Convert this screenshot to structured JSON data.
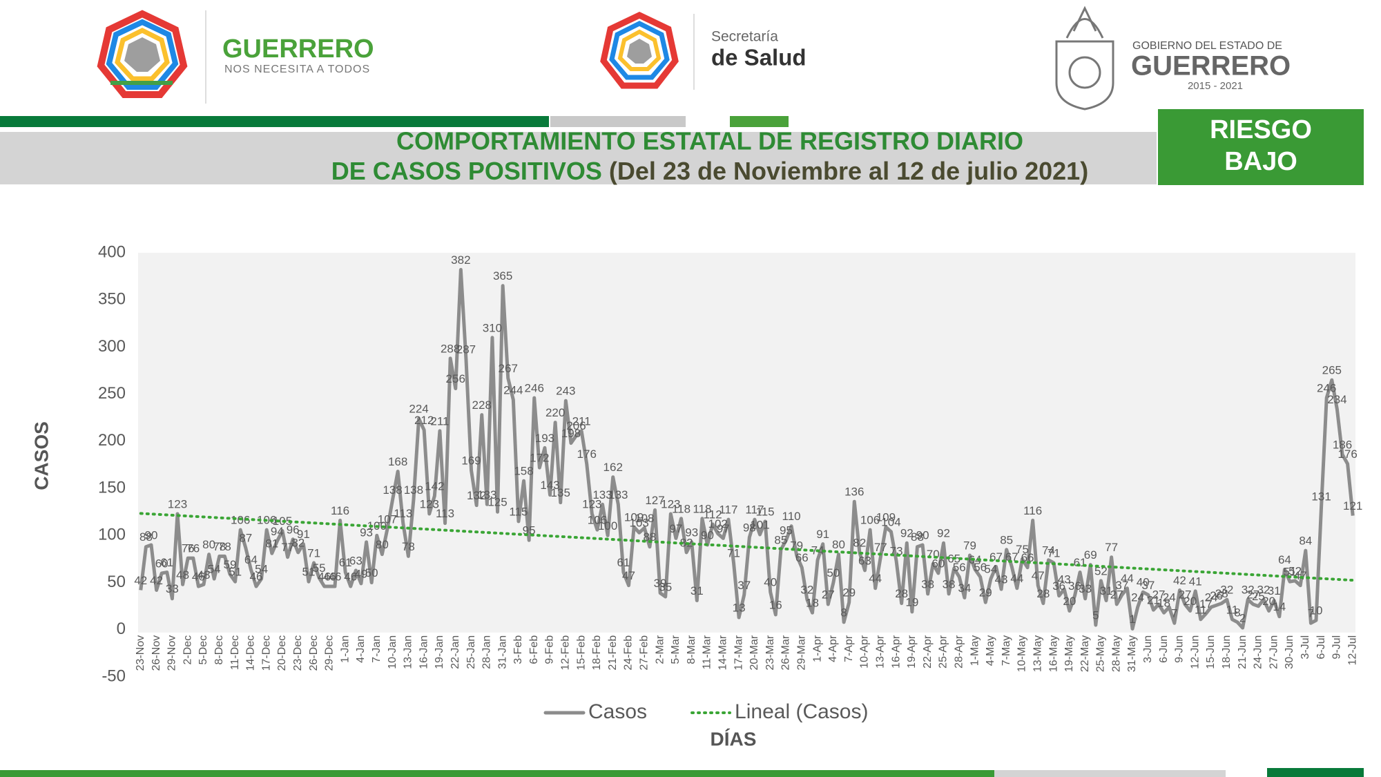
{
  "header": {
    "brand_left": {
      "title": "GUERRERO",
      "subtitle": "NOS NECESITA A TODOS"
    },
    "brand_center": {
      "line1": "Secretaría",
      "line2": "de Salud"
    },
    "brand_right": {
      "line1": "GOBIERNO DEL ESTADO DE",
      "line2": "GUERRERO",
      "years": "2015 - 2021"
    },
    "title_line1": "COMPORTAMIENTO ESTATAL DE REGISTRO DIARIO",
    "title_line2": "DE CASOS POSITIVOS",
    "title_period": "(Del 23 de Noviembre al 12 de julio 2021)",
    "risk_line1": "RIESGO",
    "risk_line2": "BAJO"
  },
  "chart_data": {
    "type": "line",
    "x_label": "DÍAS",
    "y_label": "CASOS",
    "ylim": [
      -50,
      400
    ],
    "yticks": [
      -50,
      0,
      50,
      100,
      150,
      200,
      250,
      300,
      350,
      400
    ],
    "grid": false,
    "legend": "bottom",
    "categories": [
      "23-Nov",
      null,
      null,
      "26-Nov",
      null,
      null,
      "29-Nov",
      null,
      null,
      "2-Dec",
      null,
      null,
      "5-Dec",
      null,
      null,
      "8-Dec",
      null,
      null,
      "11-Dec",
      null,
      null,
      "14-Dec",
      null,
      null,
      "17-Dec",
      null,
      null,
      "20-Dec",
      null,
      null,
      "23-Dec",
      null,
      null,
      "26-Dec",
      null,
      null,
      "29-Dec",
      null,
      null,
      "1-Jan",
      null,
      null,
      "4-Jan",
      null,
      null,
      "7-Jan",
      null,
      null,
      "10-Jan",
      null,
      null,
      "13-Jan",
      null,
      null,
      "16-Jan",
      null,
      null,
      "19-Jan",
      null,
      null,
      "22-Jan",
      null,
      null,
      "25-Jan",
      null,
      null,
      "28-Jan",
      null,
      null,
      "31-Jan",
      null,
      null,
      "3-Feb",
      null,
      null,
      "6-Feb",
      null,
      null,
      "9-Feb",
      null,
      null,
      "12-Feb",
      null,
      null,
      "15-Feb",
      null,
      null,
      "18-Feb",
      null,
      null,
      "21-Feb",
      null,
      null,
      "24-Feb",
      null,
      null,
      "27-Feb",
      null,
      null,
      "2-Mar",
      null,
      null,
      "5-Mar",
      null,
      null,
      "8-Mar",
      null,
      null,
      "11-Mar",
      null,
      null,
      "14-Mar",
      null,
      null,
      "17-Mar",
      null,
      null,
      "20-Mar",
      null,
      null,
      "23-Mar",
      null,
      null,
      "26-Mar",
      null,
      null,
      "29-Mar",
      null,
      null,
      "1-Apr",
      null,
      null,
      "4-Apr",
      null,
      null,
      "7-Apr",
      null,
      null,
      "10-Apr",
      null,
      null,
      "13-Apr",
      null,
      null,
      "16-Apr",
      null,
      null,
      "19-Apr",
      null,
      null,
      "22-Apr",
      null,
      null,
      "25-Apr",
      null,
      null,
      "28-Apr",
      null,
      null,
      "1-May",
      null,
      null,
      "4-May",
      null,
      null,
      "7-May",
      null,
      null,
      "10-May",
      null,
      null,
      "13-May",
      null,
      null,
      "16-May",
      null,
      null,
      "19-May",
      null,
      null,
      "22-May",
      null,
      null,
      "25-May",
      null,
      null,
      "28-May",
      null,
      null,
      "31-May",
      null,
      null,
      "3-Jun",
      null,
      null,
      "6-Jun",
      null,
      null,
      "9-Jun",
      null,
      null,
      "12-Jun",
      null,
      null,
      "15-Jun",
      null,
      null,
      "18-Jun",
      null,
      null,
      "21-Jun",
      null,
      null,
      "24-Jun",
      null,
      null,
      "27-Jun",
      null,
      null,
      "30-Jun",
      null,
      null,
      "3-Jul",
      null,
      null,
      "6-Jul",
      null,
      null,
      "9-Jul",
      null,
      null,
      "12-Jul"
    ],
    "series": [
      {
        "name": "Casos",
        "color": "#8c8c8c",
        "values": [
          42,
          88,
          90,
          42,
          60,
          61,
          33,
          123,
          48,
          76,
          76,
          46,
          48,
          80,
          54,
          78,
          78,
          59,
          51,
          106,
          87,
          64,
          46,
          54,
          106,
          81,
          94,
          105,
          77,
          96,
          82,
          91,
          51,
          71,
          55,
          46,
          46,
          46,
          116,
          61,
          46,
          63,
          49,
          93,
          50,
          100,
          80,
          107,
          138,
          168,
          113,
          78,
          138,
          224,
          212,
          123,
          142,
          211,
          113,
          288,
          256,
          382,
          287,
          169,
          132,
          228,
          133,
          310,
          125,
          365,
          267,
          244,
          115,
          158,
          95,
          246,
          172,
          193,
          143,
          220,
          135,
          243,
          198,
          206,
          211,
          176,
          123,
          106,
          133,
          100,
          162,
          133,
          61,
          47,
          109,
          103,
          108,
          88,
          127,
          39,
          35,
          123,
          97,
          118,
          82,
          93,
          31,
          118,
          90,
          112,
          102,
          97,
          117,
          71,
          13,
          37,
          98,
          117,
          101,
          115,
          40,
          16,
          85,
          95,
          110,
          79,
          66,
          32,
          18,
          74,
          91,
          27,
          50,
          80,
          8,
          29,
          136,
          82,
          63,
          106,
          44,
          77,
          109,
          104,
          73,
          28,
          92,
          19,
          88,
          90,
          38,
          70,
          60,
          92,
          38,
          65,
          56,
          34,
          79,
          64,
          56,
          29,
          54,
          67,
          43,
          85,
          67,
          44,
          75,
          66,
          116,
          47,
          28,
          74,
          71,
          36,
          43,
          20,
          36,
          61,
          33,
          69,
          5,
          52,
          31,
          77,
          27,
          37,
          44,
          1,
          24,
          40,
          37,
          21,
          27,
          18,
          24,
          7,
          42,
          27,
          20,
          41,
          11,
          17,
          24,
          26,
          28,
          32,
          11,
          8,
          2,
          32,
          27,
          25,
          32,
          20,
          31,
          14,
          64,
          51,
          52,
          47,
          84,
          7,
          10,
          131,
          246,
          265,
          234,
          186,
          176,
          121
        ]
      },
      {
        "name": "Lineal (Casos)",
        "color": "#3aa535",
        "style": "dotted",
        "fit": "linear",
        "of_series": 0
      }
    ]
  }
}
